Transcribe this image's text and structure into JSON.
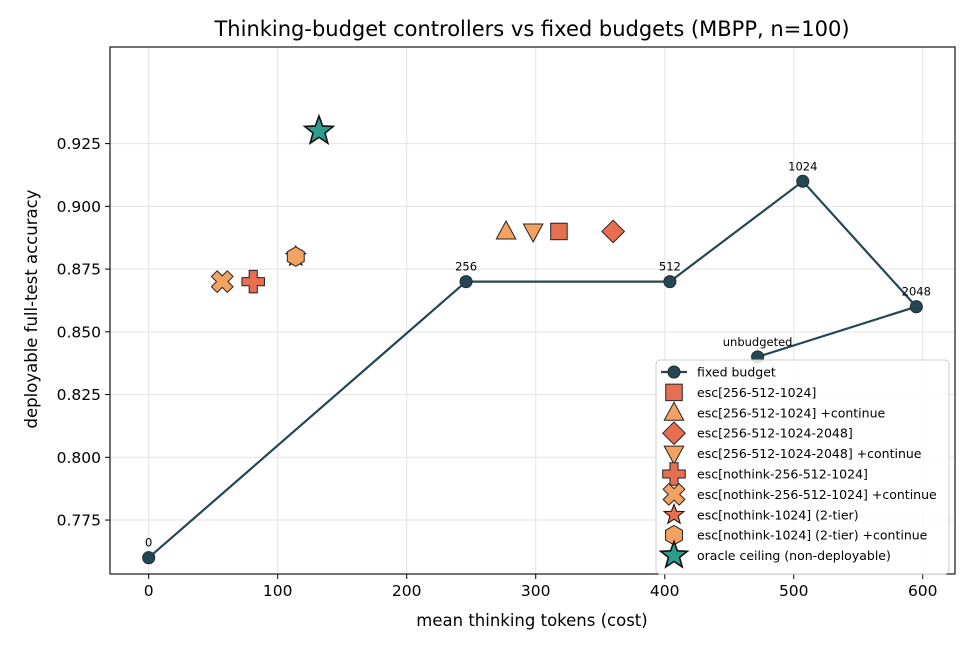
{
  "chart_data": {
    "type": "scatter",
    "title": "Thinking-budget controllers vs fixed budgets (MBPP, n=100)",
    "xlabel": "mean thinking tokens (cost)",
    "ylabel": "deployable full-test accuracy",
    "xlim": [
      -30,
      625
    ],
    "ylim": [
      0.7535,
      0.9635
    ],
    "xticks": [
      0,
      100,
      200,
      300,
      400,
      500,
      600
    ],
    "yticks": [
      0.775,
      0.8,
      0.825,
      0.85,
      0.875,
      0.9,
      0.925
    ],
    "ytick_labels": [
      "0.775",
      "0.800",
      "0.825",
      "0.850",
      "0.875",
      "0.900",
      "0.925"
    ],
    "grid": true,
    "legend_position": "lower right",
    "colors": {
      "navy": "#264653",
      "coral": "#e76f51",
      "orange": "#f4a261",
      "teal": "#2a9d8f"
    },
    "series": [
      {
        "name": "fixed budget",
        "marker": "circle",
        "line": true,
        "color": "#264653",
        "points": [
          {
            "x": 0,
            "y": 0.76,
            "label": "0"
          },
          {
            "x": 246,
            "y": 0.87,
            "label": "256"
          },
          {
            "x": 404,
            "y": 0.87,
            "label": "512"
          },
          {
            "x": 507,
            "y": 0.91,
            "label": "1024"
          },
          {
            "x": 595,
            "y": 0.86,
            "label": "2048"
          },
          {
            "x": 472,
            "y": 0.84,
            "label": "unbudgeted"
          }
        ]
      },
      {
        "name": "esc[256-512-1024]",
        "marker": "square",
        "color": "#e76f51",
        "points": [
          {
            "x": 318,
            "y": 0.89
          }
        ]
      },
      {
        "name": "esc[256-512-1024] +continue",
        "marker": "triangle-up",
        "color": "#f4a261",
        "points": [
          {
            "x": 277,
            "y": 0.89
          }
        ]
      },
      {
        "name": "esc[256-512-1024-2048]",
        "marker": "diamond",
        "color": "#e76f51",
        "points": [
          {
            "x": 360,
            "y": 0.89
          }
        ]
      },
      {
        "name": "esc[256-512-1024-2048] +continue",
        "marker": "triangle-down",
        "color": "#f4a261",
        "points": [
          {
            "x": 298,
            "y": 0.89
          }
        ]
      },
      {
        "name": "esc[nothink-256-512-1024]",
        "marker": "plus",
        "color": "#e76f51",
        "points": [
          {
            "x": 81,
            "y": 0.87
          }
        ]
      },
      {
        "name": "esc[nothink-256-512-1024] +continue",
        "marker": "x",
        "color": "#f4a261",
        "points": [
          {
            "x": 57,
            "y": 0.87
          }
        ]
      },
      {
        "name": "esc[nothink-1024] (2-tier)",
        "marker": "star-small",
        "color": "#e76f51",
        "points": [
          {
            "x": 114,
            "y": 0.88
          }
        ]
      },
      {
        "name": "esc[nothink-1024] (2-tier) +continue",
        "marker": "hexagon",
        "color": "#f4a261",
        "points": [
          {
            "x": 114,
            "y": 0.88
          }
        ]
      },
      {
        "name": "oracle ceiling (non-deployable)",
        "marker": "star",
        "color": "#2a9d8f",
        "points": [
          {
            "x": 132,
            "y": 0.93
          }
        ]
      }
    ]
  }
}
